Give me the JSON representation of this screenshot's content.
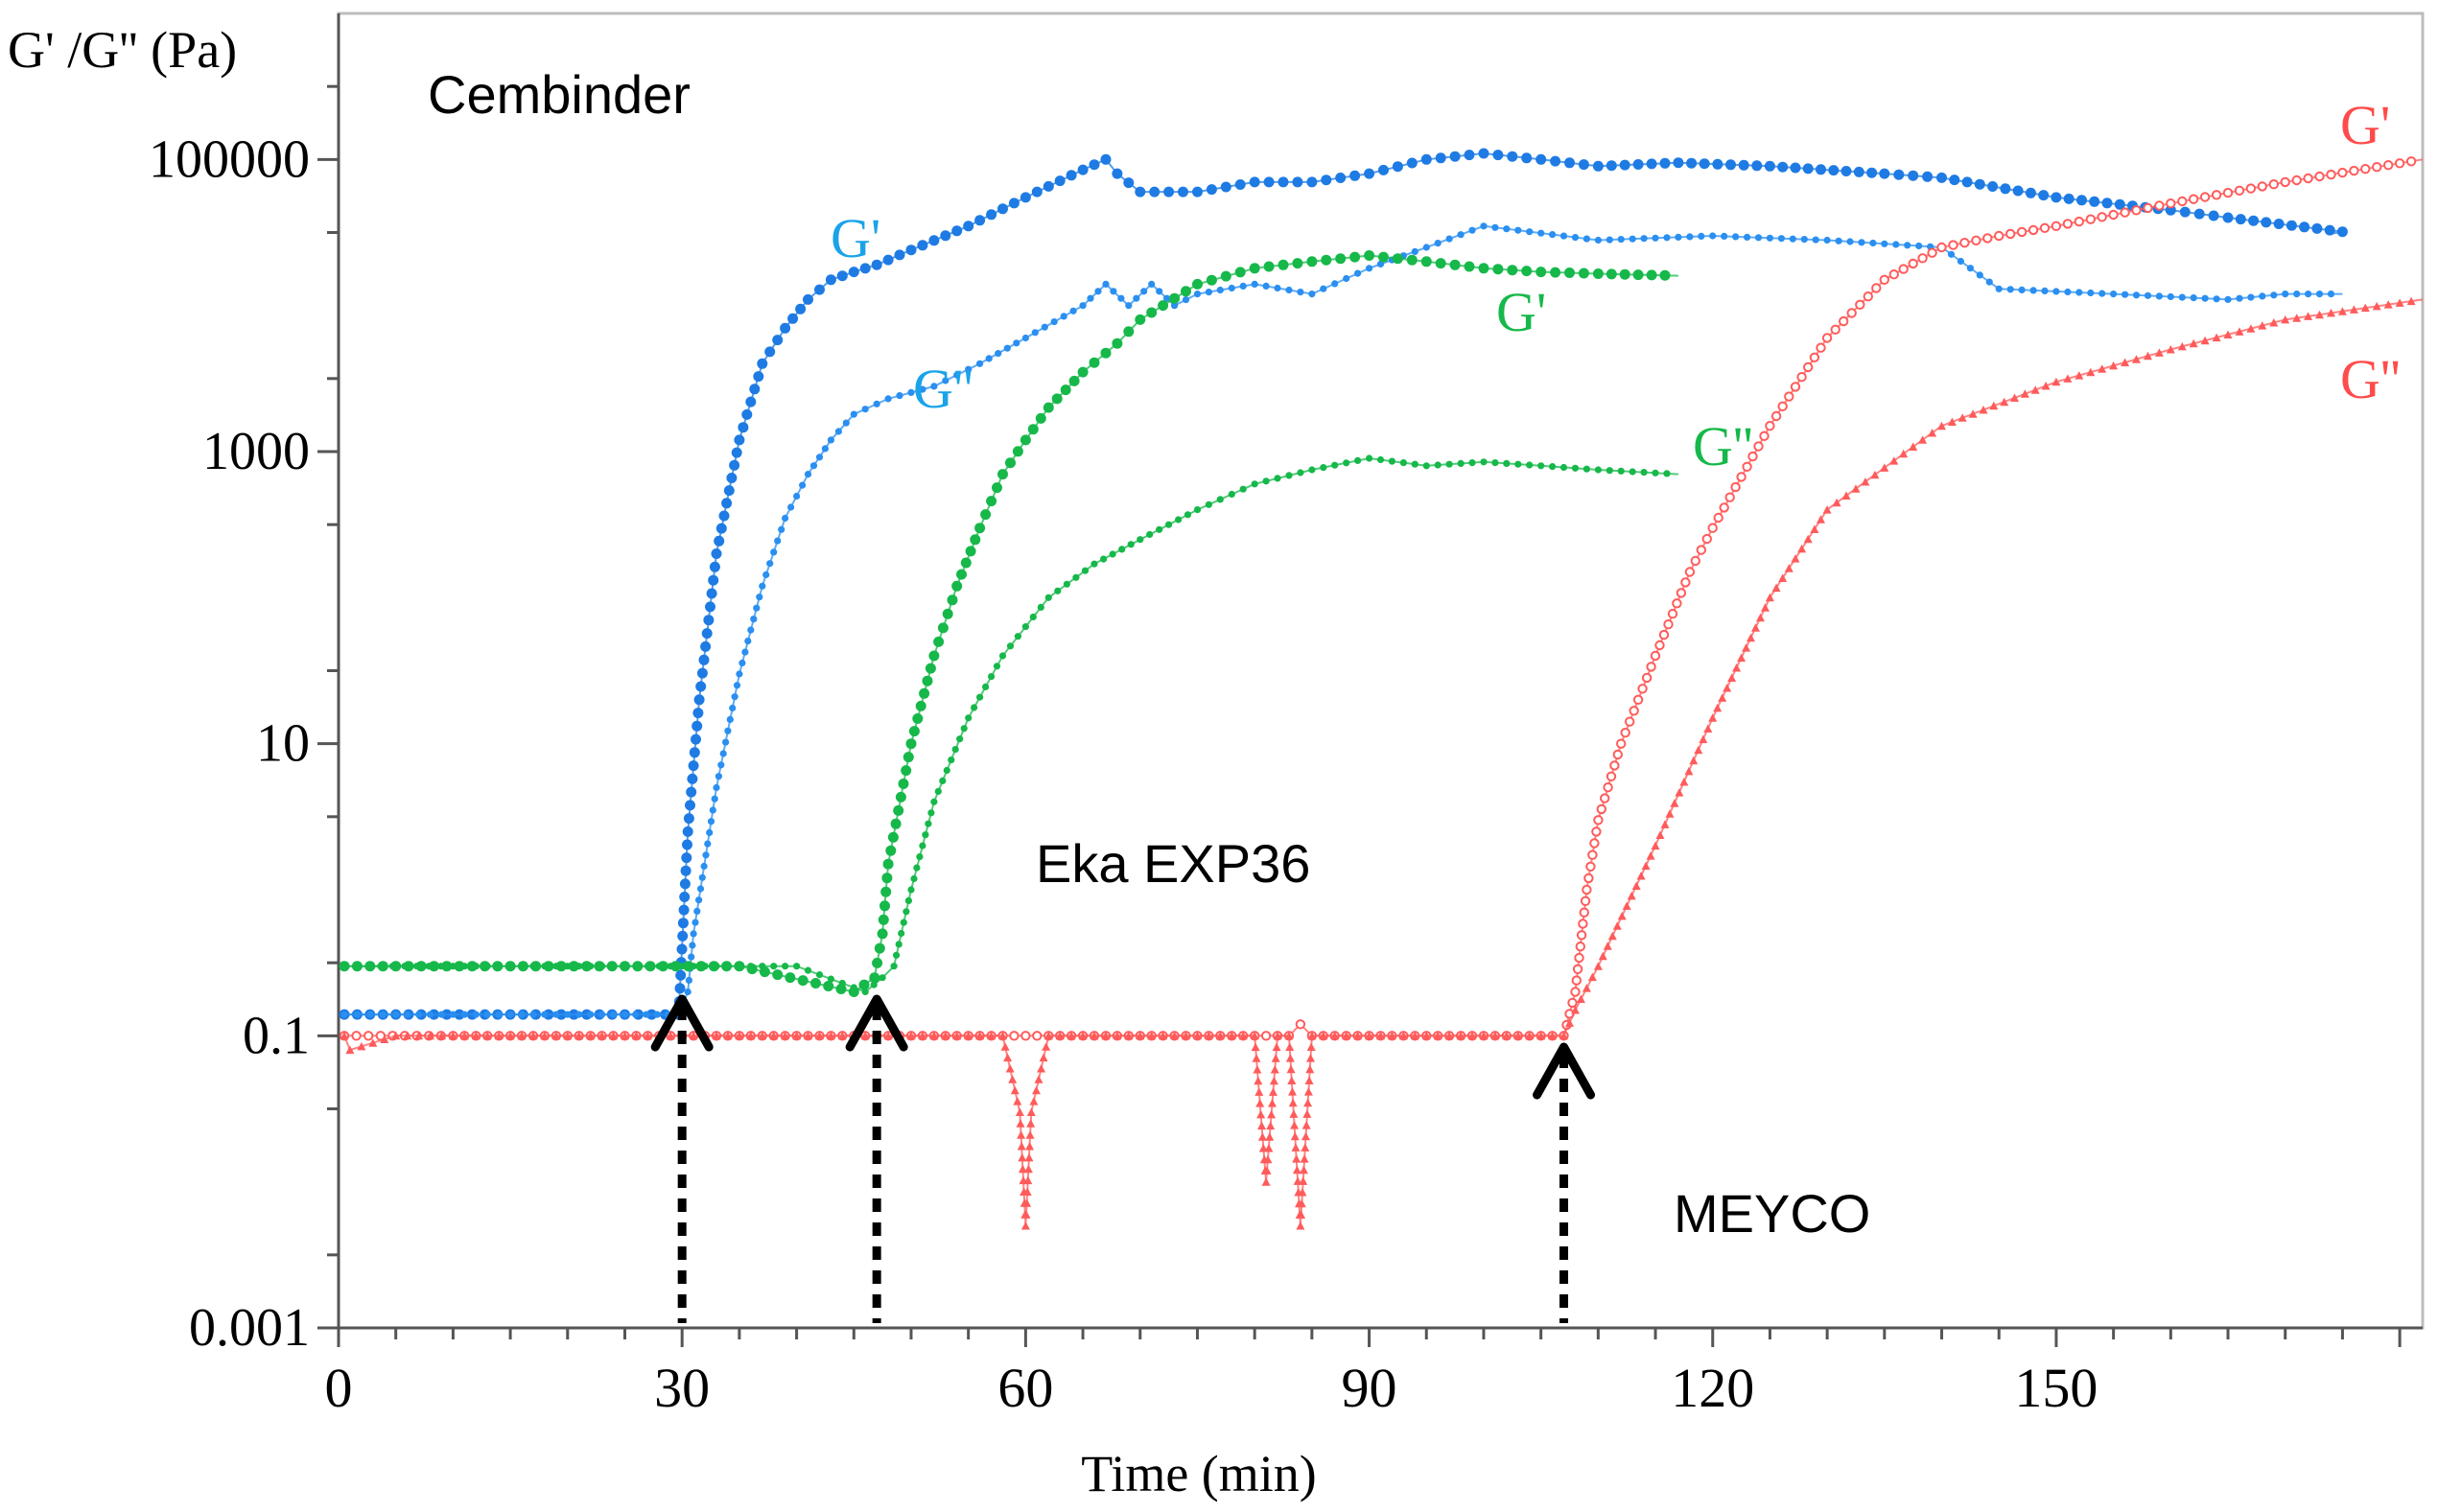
{
  "chart_data": {
    "type": "line",
    "title": "",
    "xlabel": "Time (min)",
    "ylabel": "G' /G'' (Pa)",
    "xlim": [
      0,
      182
    ],
    "ylim": [
      0.001,
      1000000
    ],
    "yscale": "log",
    "x_ticks": [
      0,
      30,
      60,
      90,
      120,
      150
    ],
    "x_tick_labels": [
      "0",
      "30",
      "60",
      "90",
      "120",
      "150"
    ],
    "y_ticks": [
      0.001,
      0.1,
      10,
      1000,
      100000
    ],
    "y_tick_labels": [
      "0.001",
      "0.1",
      "10",
      "1000",
      "100000"
    ],
    "grid": false,
    "colors": {
      "cembinder": "#1e7be3",
      "cembinder_light": "#2a8ff0",
      "eka": "#16b84a",
      "meyco": "#ff5b5b",
      "arrow": "#000000",
      "frame": "#bcbcbc"
    },
    "annotations": {
      "cembinder": "Cembinder",
      "eka": "Eka EXP36",
      "meyco": "MEYCO",
      "cembinder_gp": "G'",
      "cembinder_gpp": "G''",
      "eka_gp": "G'",
      "eka_gpp": "G''",
      "meyco_gp": "G'",
      "meyco_gpp": "G''"
    },
    "gel_times": [
      30,
      47,
      107
    ],
    "series": [
      {
        "name": "Cembinder G'",
        "color": "#1e7be3",
        "marker": "filled",
        "x": [
          0.5,
          5,
          15,
          25,
          29.7,
          30.5,
          31.5,
          33,
          35,
          37,
          39,
          41,
          43,
          45,
          47,
          50,
          55,
          60,
          65,
          67,
          68,
          70,
          75,
          80,
          85,
          90,
          95,
          100,
          105,
          110,
          117,
          125,
          135,
          140,
          150,
          160,
          165,
          175,
          174
        ],
        "y": [
          0.14,
          0.14,
          0.14,
          0.14,
          0.14,
          2.5,
          20,
          200,
          1200,
          4000,
          7000,
          11000,
          15000,
          17000,
          19000,
          24000,
          35000,
          55000,
          85000,
          100000,
          80000,
          60000,
          60000,
          70000,
          70000,
          80000,
          100000,
          110000,
          100000,
          90000,
          95000,
          90000,
          80000,
          75000,
          55000,
          45000,
          40000,
          32000,
          31000
        ]
      },
      {
        "name": "Cembinder G''",
        "color": "#2a8ff0",
        "marker": "small",
        "x": [
          0.5,
          5,
          15,
          25,
          29.7,
          30.5,
          31,
          33,
          35,
          37,
          39,
          41,
          43,
          45,
          48,
          52,
          56,
          60,
          65,
          67,
          69,
          71,
          73,
          75,
          80,
          85,
          90,
          95,
          100,
          110,
          120,
          130,
          140,
          145,
          155,
          165,
          170,
          175
        ],
        "y": [
          0.14,
          0.14,
          0.14,
          0.14,
          0.14,
          0.2,
          0.5,
          5,
          30,
          120,
          350,
          700,
          1200,
          1800,
          2300,
          2800,
          4000,
          6000,
          10000,
          14000,
          10000,
          14000,
          10000,
          12000,
          14000,
          12000,
          18000,
          25000,
          35000,
          28000,
          30000,
          28000,
          25000,
          13000,
          12000,
          11000,
          12000,
          12000
        ]
      },
      {
        "name": "Eka EXP36 G'",
        "color": "#16b84a",
        "marker": "filled",
        "x": [
          0.5,
          5,
          15,
          25,
          35,
          45,
          46.8,
          47.5,
          48,
          50,
          52,
          54,
          56,
          58,
          60,
          62,
          65,
          68,
          70,
          75,
          80,
          85,
          90,
          95,
          100,
          105,
          110,
          117
        ],
        "y": [
          0.3,
          0.3,
          0.3,
          0.3,
          0.3,
          0.2,
          0.25,
          0.5,
          1.5,
          10,
          40,
          120,
          300,
          700,
          1200,
          2000,
          3500,
          5500,
          8000,
          14000,
          18000,
          20000,
          22000,
          20000,
          18000,
          17000,
          16500,
          16000
        ]
      },
      {
        "name": "Eka EXP36 G''",
        "color": "#16b84a",
        "marker": "small",
        "x": [
          0.5,
          10,
          20,
          30,
          40,
          46,
          47.5,
          48.5,
          50,
          52,
          55,
          58,
          62,
          66,
          70,
          75,
          80,
          85,
          90,
          95,
          100,
          105,
          110,
          117
        ],
        "y": [
          0.3,
          0.3,
          0.3,
          0.3,
          0.3,
          0.2,
          0.25,
          0.3,
          1,
          4,
          15,
          40,
          100,
          170,
          250,
          400,
          600,
          750,
          900,
          800,
          850,
          800,
          750,
          700
        ]
      },
      {
        "name": "MEYCO G'",
        "color": "#ff5b5b",
        "marker": "open",
        "x": [
          0.5,
          10,
          20,
          30,
          40,
          50,
          59,
          60,
          61,
          70,
          80,
          82,
          83,
          84,
          85,
          86,
          90,
          100,
          105,
          106,
          107,
          108,
          109,
          110,
          112,
          115,
          118,
          120,
          125,
          130,
          135,
          140,
          145,
          150,
          160,
          170,
          182
        ],
        "y": [
          0.1,
          0.1,
          0.1,
          0.1,
          0.1,
          0.1,
          0.1,
          0.1,
          0.1,
          0.1,
          0.1,
          0.1,
          0.1,
          0.12,
          0.1,
          0.1,
          0.1,
          0.1,
          0.1,
          0.1,
          0.1,
          0.2,
          1,
          3,
          10,
          40,
          150,
          300,
          1500,
          6000,
          15000,
          25000,
          30000,
          35000,
          50000,
          70000,
          100000
        ]
      },
      {
        "name": "MEYCO G''",
        "color": "#ff5b5b",
        "marker": "triangle",
        "x": [
          0.5,
          1,
          5,
          10,
          20,
          30,
          40,
          50,
          58,
          59.5,
          60,
          60.5,
          62,
          70,
          80,
          81,
          82,
          83,
          84,
          85,
          86,
          90,
          100,
          105,
          107,
          108,
          110,
          115,
          120,
          125,
          130,
          140,
          150,
          160,
          170,
          182
        ],
        "y": [
          0.1,
          0.08,
          0.1,
          0.1,
          0.1,
          0.1,
          0.1,
          0.1,
          0.1,
          0.03,
          0.005,
          0.03,
          0.1,
          0.1,
          0.1,
          0.01,
          0.1,
          0.1,
          0.005,
          0.1,
          0.1,
          0.1,
          0.1,
          0.1,
          0.1,
          0.15,
          0.3,
          2,
          15,
          100,
          400,
          1500,
          3000,
          5000,
          8000,
          11000
        ]
      }
    ]
  }
}
